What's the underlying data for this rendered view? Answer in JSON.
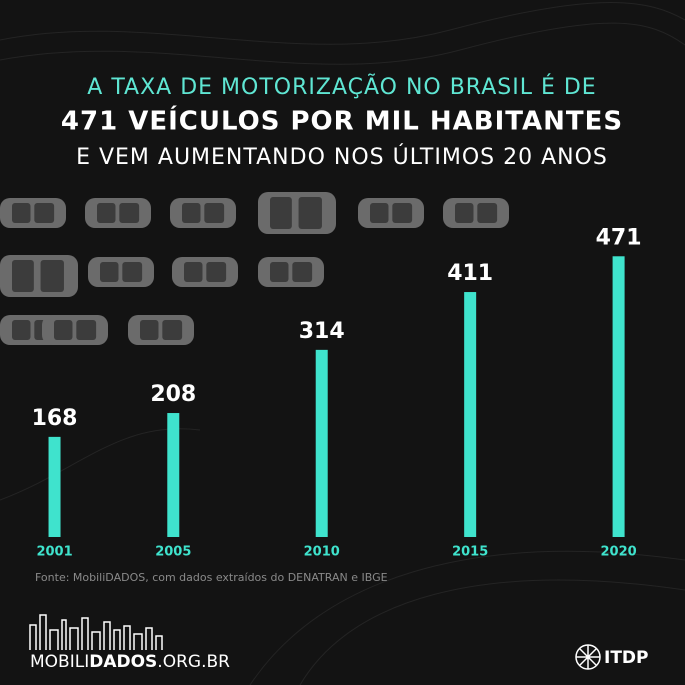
{
  "chart_data": {
    "type": "bar",
    "title_lines": [
      "A TAXA DE MOTORIZAÇÃO NO BRASIL É DE",
      "471 VEÍCULOS POR MIL HABITANTES",
      "E VEM AUMENTANDO NOS ÚLTIMOS 20 ANOS"
    ],
    "x": [
      2001,
      2005,
      2010,
      2015,
      2020
    ],
    "values": [
      168,
      208,
      314,
      411,
      471
    ],
    "color": "#3fe3cd",
    "xlim": [
      1999.5,
      2021.9
    ],
    "ylim": [
      0,
      500
    ],
    "source": "Fonte: MobiliDADOS, com dados extraídos do DENATRAN e IBGE"
  },
  "logos": {
    "mobilidados": [
      "MOBILI",
      "DADOS",
      ".ORG.BR"
    ],
    "itdp": "ITDP"
  }
}
